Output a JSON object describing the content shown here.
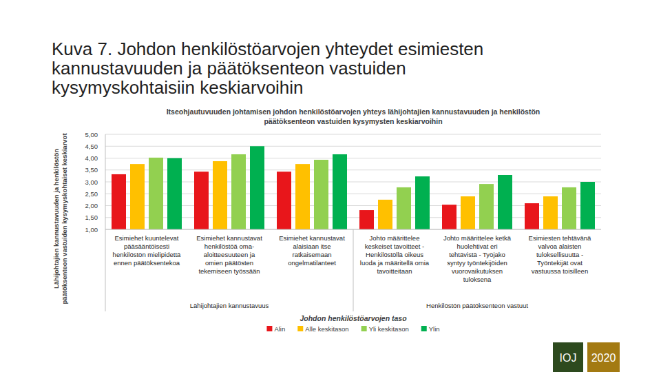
{
  "page": {
    "title": "Kuva 7. Johdon henkilöstöarvojen yhteydet esimiesten\nkannustavuuden ja päätöksenteon vastuiden\nkysymyskohtaisiin keskiarvoihin",
    "footer": [
      "IOJ",
      "2020"
    ]
  },
  "chart_data": {
    "type": "bar",
    "title": "Itseohjautuvuuden johtamisen johdon henkilöstöarvojen yhteys lähijohtajien kannustavuuden ja henkilöstön\npäätöksenteon vastuiden kysymysten keskiarvoihin",
    "x_label": "Johdon henkilöstöarvojen taso",
    "y_label": "Lähijohtajien kannustavuuden ja henkilöstön\npäätöksenteon vastuiden kysymyskohtaiset keskiarvot",
    "categories": [
      "Esimiehet kuuntelevat\npääsääntöisesti\nhenkilöstön mielipidettä\nennen päätöksentekoa",
      "Esimiehet kannustavat\nhenkilöstöä oma-\naloitteesuuteen ja\nomien päätösten\ntekemiseen työssään",
      "Esimiehet kannustavat\nalaisiaan itse\nratkaisemaan\nongelmatilanteet",
      "Johto määrittelee\nkeskeiset tavoitteet -\nHenkilöstöllä oikeus\nluoda ja määritellä omia\ntavoitteitaan",
      "Johto määrittelee ketkä\nhuolehtivat eri\ntehtävistä - Työjako\nsyntyy työntekijöiden\nvuorovaikutuksen\ntuloksena",
      "Esimiesten tehtävänä\nvalvoa alaisten\ntuloksellisuutta -\nTyöntekijät ovat\nvastuussa toisilleen"
    ],
    "groups": [
      {
        "label": "Lähijohtajien kannustavuus",
        "count": 3
      },
      {
        "label": "Henkilöstön päätöksenteon vastuut",
        "count": 3
      }
    ],
    "series": [
      {
        "name": "Alin",
        "color": "#e8161b",
        "values": [
          3.32,
          3.43,
          3.43,
          1.81,
          2.04,
          2.1
        ]
      },
      {
        "name": "Alle keskitason",
        "color": "#ffc000",
        "values": [
          3.75,
          3.87,
          3.75,
          2.25,
          2.39,
          2.39
        ]
      },
      {
        "name": "Yli keskitason",
        "color": "#92d050",
        "values": [
          4.02,
          4.16,
          3.93,
          2.77,
          2.91,
          2.77
        ]
      },
      {
        "name": "Ylin",
        "color": "#00b050",
        "values": [
          4.0,
          4.5,
          4.16,
          3.23,
          3.29,
          3.0
        ]
      }
    ],
    "ylim": [
      1,
      5
    ],
    "yticks": [
      {
        "value": 1,
        "label": "1,00"
      },
      {
        "value": 1.5,
        "label": "1,50"
      },
      {
        "value": 2,
        "label": "2,00"
      },
      {
        "value": 2.5,
        "label": "2,50"
      },
      {
        "value": 3,
        "label": "3,00"
      },
      {
        "value": 3.5,
        "label": "3,50"
      },
      {
        "value": 4,
        "label": "4,00"
      },
      {
        "value": 4.5,
        "label": "4,50"
      },
      {
        "value": 5,
        "label": "5,00"
      }
    ],
    "grid": true,
    "legend": "bottom"
  }
}
